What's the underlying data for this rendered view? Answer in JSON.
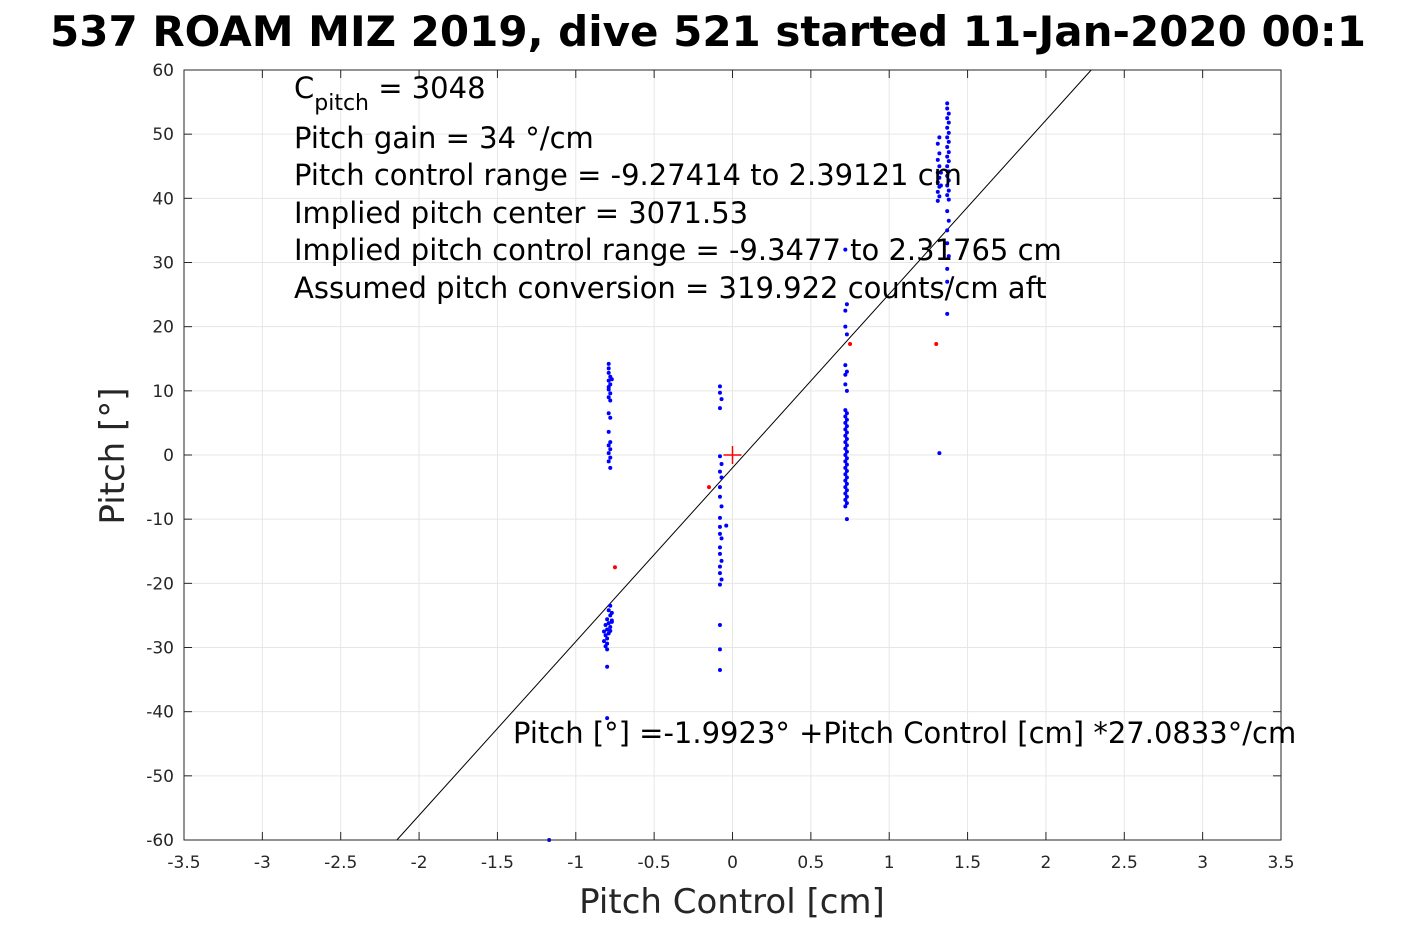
{
  "chart_data": {
    "type": "scatter",
    "title": "537 ROAM MIZ 2019, dive 521 started 11-Jan-2020 00:1",
    "xlabel": "Pitch Control [cm]",
    "ylabel": "Pitch [°]",
    "xlim": [
      -3.5,
      3.5
    ],
    "ylim": [
      -60,
      60
    ],
    "xticks": [
      -3.5,
      -3,
      -2.5,
      -2,
      -1.5,
      -1,
      -0.5,
      0,
      0.5,
      1,
      1.5,
      2,
      2.5,
      3,
      3.5
    ],
    "yticks": [
      -60,
      -50,
      -40,
      -30,
      -20,
      -10,
      0,
      10,
      20,
      30,
      40,
      50,
      60
    ],
    "xtick_labels": [
      "-3.5",
      "-3",
      "-2.5",
      "-2",
      "-1.5",
      "-1",
      "-0.5",
      "0",
      "0.5",
      "1",
      "1.5",
      "2",
      "2.5",
      "3",
      "3.5"
    ],
    "ytick_labels": [
      "-60",
      "-50",
      "-40",
      "-30",
      "-20",
      "-10",
      "0",
      "10",
      "20",
      "30",
      "40",
      "50",
      "60"
    ],
    "grid": true,
    "fit_line": {
      "intercept": -1.9923,
      "slope": 27.0833,
      "color": "#000000"
    },
    "center_marker": {
      "x": 0,
      "y": 0,
      "color": "#ff0000"
    },
    "annotations": {
      "c_pitch_main": "C",
      "c_pitch_sub": "pitch",
      "c_pitch_value": " = 3048",
      "line2": "Pitch gain = 34 °/cm",
      "line3": "Pitch control range = -9.27414 to 2.39121 cm",
      "line4": "Implied pitch center = 3071.53",
      "line5": "Implied pitch control range = -9.3477 to 2.31765 cm",
      "line6": "Assumed pitch conversion = 319.922 counts/cm aft",
      "fit_text": "Pitch [°] =-1.9923° +Pitch Control [cm] *27.0833°/cm"
    },
    "series": [
      {
        "color": "#0000ff",
        "points": [
          [
            -0.79,
            14.2
          ],
          [
            -0.79,
            13.5
          ],
          [
            -0.79,
            12.8
          ],
          [
            -0.78,
            12.2
          ],
          [
            -0.79,
            11.6
          ],
          [
            -0.78,
            11.0
          ],
          [
            -0.79,
            10.6
          ],
          [
            -0.77,
            11.8
          ],
          [
            -0.79,
            10.2
          ],
          [
            -0.78,
            9.6
          ],
          [
            -0.79,
            9.0
          ],
          [
            -0.78,
            8.5
          ],
          [
            -0.79,
            6.5
          ],
          [
            -0.78,
            5.8
          ],
          [
            -0.79,
            3.6
          ],
          [
            -0.78,
            2.0
          ],
          [
            -0.79,
            1.5
          ],
          [
            -0.78,
            0.9
          ],
          [
            -0.79,
            0.3
          ],
          [
            -0.78,
            -0.4
          ],
          [
            -0.79,
            -1.0
          ],
          [
            -0.78,
            -2.0
          ],
          [
            -0.78,
            -23.5
          ],
          [
            -0.79,
            -24.2
          ],
          [
            -0.77,
            -24.6
          ],
          [
            -0.78,
            -25.0
          ],
          [
            -0.8,
            -25.6
          ],
          [
            -0.77,
            -25.8
          ],
          [
            -0.79,
            -26.2
          ],
          [
            -0.81,
            -26.5
          ],
          [
            -0.78,
            -26.8
          ],
          [
            -0.8,
            -27.2
          ],
          [
            -0.82,
            -27.5
          ],
          [
            -0.79,
            -27.8
          ],
          [
            -0.81,
            -28.1
          ],
          [
            -0.8,
            -28.6
          ],
          [
            -0.82,
            -29.0
          ],
          [
            -0.8,
            -29.4
          ],
          [
            -0.81,
            -29.8
          ],
          [
            -0.8,
            -30.3
          ],
          [
            -0.77,
            -26.0
          ],
          [
            -0.78,
            -27.4
          ],
          [
            -0.8,
            -33.0
          ],
          [
            -0.8,
            -41.0
          ],
          [
            -1.17,
            -60.0
          ],
          [
            -0.08,
            10.7
          ],
          [
            -0.08,
            9.7
          ],
          [
            -0.07,
            8.7
          ],
          [
            -0.08,
            7.3
          ],
          [
            -0.08,
            -0.2
          ],
          [
            -0.07,
            -1.4
          ],
          [
            -0.08,
            -2.6
          ],
          [
            -0.07,
            -3.5
          ],
          [
            -0.08,
            -5.0
          ],
          [
            -0.08,
            -6.5
          ],
          [
            -0.07,
            -8.0
          ],
          [
            -0.08,
            -9.8
          ],
          [
            -0.04,
            -11.0
          ],
          [
            -0.08,
            -11.2
          ],
          [
            -0.08,
            -12.3
          ],
          [
            -0.07,
            -13.0
          ],
          [
            -0.08,
            -14.4
          ],
          [
            -0.08,
            -15.4
          ],
          [
            -0.07,
            -16.5
          ],
          [
            -0.08,
            -17.4
          ],
          [
            -0.08,
            -18.4
          ],
          [
            -0.07,
            -19.4
          ],
          [
            -0.08,
            -20.2
          ],
          [
            -0.08,
            -26.5
          ],
          [
            -0.08,
            -30.3
          ],
          [
            -0.08,
            -33.5
          ],
          [
            0.72,
            32.0
          ],
          [
            0.73,
            23.5
          ],
          [
            0.72,
            22.5
          ],
          [
            0.72,
            20.0
          ],
          [
            0.73,
            18.8
          ],
          [
            0.72,
            14.0
          ],
          [
            0.73,
            13.0
          ],
          [
            0.72,
            12.5
          ],
          [
            0.72,
            11.0
          ],
          [
            0.73,
            10.0
          ],
          [
            0.72,
            7.0
          ],
          [
            0.73,
            6.5
          ],
          [
            0.72,
            6.0
          ],
          [
            0.73,
            5.5
          ],
          [
            0.72,
            5.0
          ],
          [
            0.73,
            4.5
          ],
          [
            0.72,
            4.0
          ],
          [
            0.73,
            3.5
          ],
          [
            0.72,
            3.0
          ],
          [
            0.73,
            2.5
          ],
          [
            0.72,
            2.0
          ],
          [
            0.73,
            1.5
          ],
          [
            0.72,
            1.0
          ],
          [
            0.73,
            0.5
          ],
          [
            0.72,
            0.0
          ],
          [
            0.73,
            -0.5
          ],
          [
            0.72,
            -1.0
          ],
          [
            0.73,
            -1.5
          ],
          [
            0.72,
            -2.0
          ],
          [
            0.73,
            -2.5
          ],
          [
            0.72,
            -3.0
          ],
          [
            0.73,
            -3.5
          ],
          [
            0.72,
            -4.0
          ],
          [
            0.73,
            -4.5
          ],
          [
            0.72,
            -5.0
          ],
          [
            0.73,
            -5.5
          ],
          [
            0.72,
            -6.0
          ],
          [
            0.73,
            -6.5
          ],
          [
            0.72,
            -7.0
          ],
          [
            0.73,
            -7.5
          ],
          [
            0.72,
            -8.0
          ],
          [
            0.73,
            -10.0
          ],
          [
            1.32,
            0.3
          ],
          [
            1.37,
            54.8
          ],
          [
            1.37,
            54.0
          ],
          [
            1.38,
            53.2
          ],
          [
            1.37,
            52.5
          ],
          [
            1.38,
            51.8
          ],
          [
            1.37,
            51.0
          ],
          [
            1.38,
            50.2
          ],
          [
            1.37,
            49.5
          ],
          [
            1.38,
            48.8
          ],
          [
            1.37,
            48.0
          ],
          [
            1.38,
            47.2
          ],
          [
            1.37,
            46.5
          ],
          [
            1.38,
            45.8
          ],
          [
            1.37,
            45.0
          ],
          [
            1.38,
            44.2
          ],
          [
            1.37,
            43.5
          ],
          [
            1.38,
            42.8
          ],
          [
            1.37,
            42.0
          ],
          [
            1.38,
            41.2
          ],
          [
            1.37,
            40.5
          ],
          [
            1.38,
            39.8
          ],
          [
            1.37,
            38.0
          ],
          [
            1.38,
            36.5
          ],
          [
            1.37,
            35.0
          ],
          [
            1.37,
            33.0
          ],
          [
            1.38,
            31.0
          ],
          [
            1.37,
            29.0
          ],
          [
            1.37,
            27.0
          ],
          [
            1.37,
            22.0
          ],
          [
            1.32,
            49.5
          ],
          [
            1.31,
            48.5
          ],
          [
            1.32,
            47.0
          ],
          [
            1.31,
            46.0
          ],
          [
            1.32,
            45.0
          ],
          [
            1.31,
            44.0
          ],
          [
            1.32,
            43.2
          ],
          [
            1.31,
            42.5
          ],
          [
            1.32,
            41.8
          ],
          [
            1.31,
            41.0
          ],
          [
            1.32,
            40.3
          ],
          [
            1.31,
            39.6
          ],
          [
            1.33,
            42.0
          ],
          [
            1.33,
            44.0
          ]
        ]
      },
      {
        "color": "#ff0000",
        "points": [
          [
            -0.75,
            -17.5
          ],
          [
            -0.15,
            -5.0
          ],
          [
            0.75,
            17.3
          ],
          [
            1.3,
            17.3
          ]
        ]
      }
    ]
  }
}
